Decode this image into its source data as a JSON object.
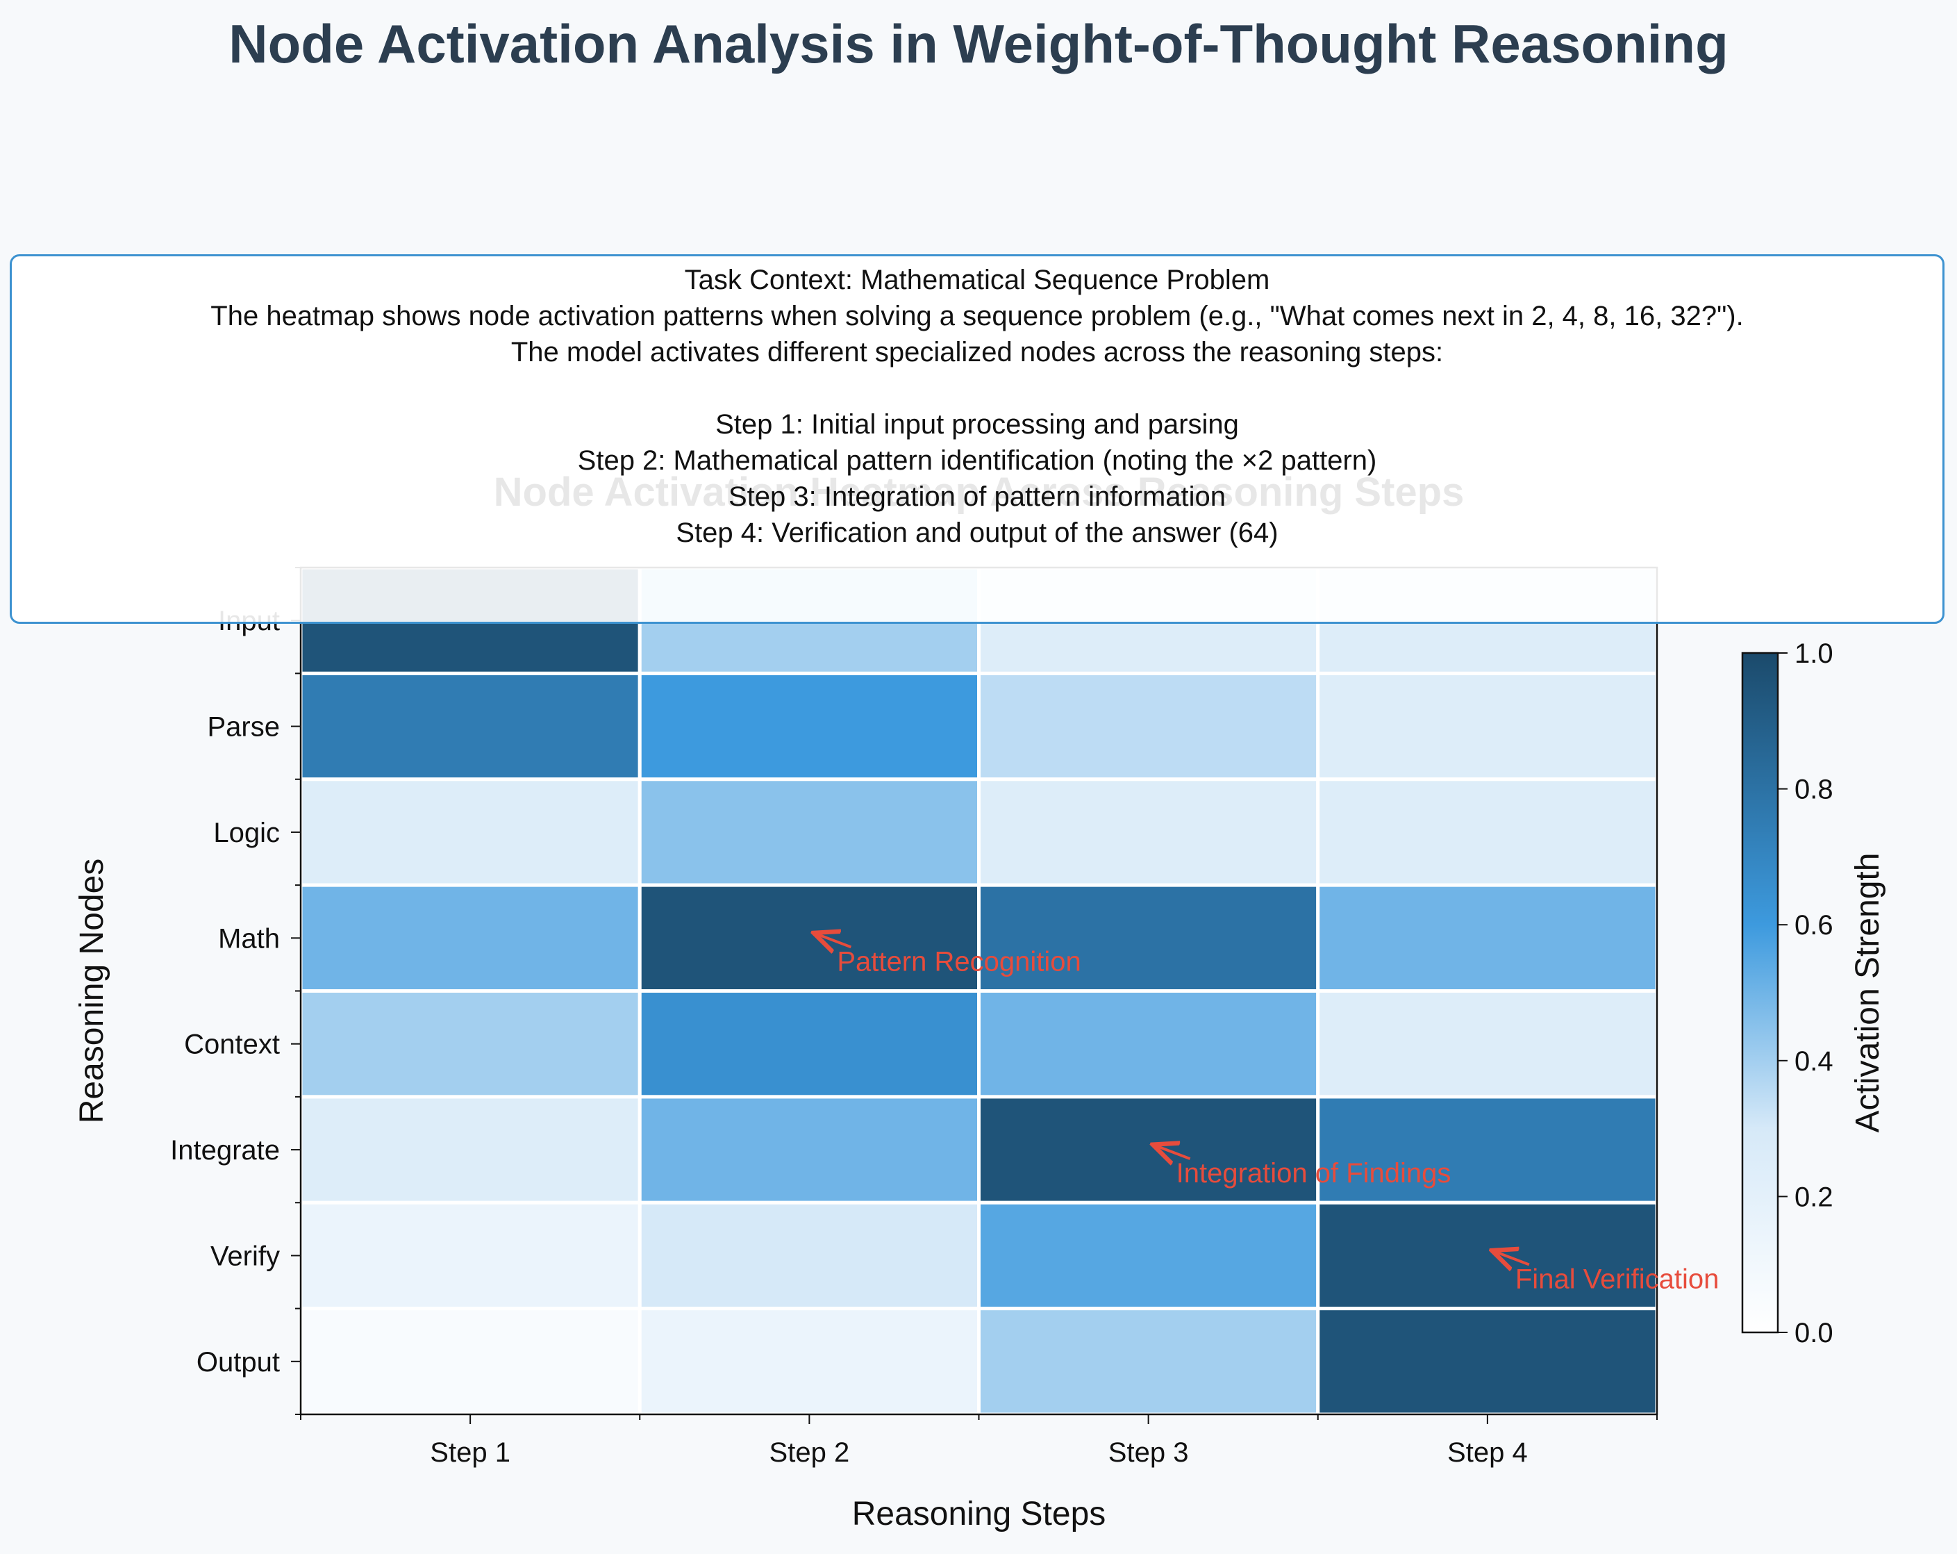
{
  "figure_title": "Node Activation Analysis in Weight-of-Thought Reasoning",
  "context_box": {
    "lines": [
      "Task Context: Mathematical Sequence Problem",
      "The heatmap shows node activation patterns when solving a sequence problem (e.g., \"What comes next in 2, 4, 8, 16, 32?\").",
      "The model activates different specialized nodes across the reasoning steps:",
      "",
      "Step 1: Initial input processing and parsing",
      "Step 2: Mathematical pattern identification (noting the ×2 pattern)",
      "Step 3: Integration of pattern information",
      "Step 4: Verification and output of the answer (64)"
    ]
  },
  "colors": {
    "title": "#2c3e50",
    "annotation": "#e74c3c",
    "box_border": "#3d92d0",
    "colormap": [
      "#ffffff",
      "#d6e9f8",
      "#3d9ade",
      "#1b4a6b"
    ]
  },
  "chart_data": {
    "type": "heatmap",
    "title": "Node Activation Heatmap Across Reasoning Steps",
    "xlabel": "Reasoning Steps",
    "ylabel": "Reasoning Nodes",
    "x_categories": [
      "Step 1",
      "Step 2",
      "Step 3",
      "Step 4"
    ],
    "y_categories": [
      "Input",
      "Parse",
      "Logic",
      "Math",
      "Context",
      "Integrate",
      "Verify",
      "Output"
    ],
    "values": [
      [
        0.95,
        0.4,
        0.25,
        0.25
      ],
      [
        0.75,
        0.6,
        0.35,
        0.25
      ],
      [
        0.25,
        0.45,
        0.25,
        0.25
      ],
      [
        0.5,
        0.95,
        0.8,
        0.5
      ],
      [
        0.4,
        0.65,
        0.5,
        0.25
      ],
      [
        0.25,
        0.5,
        0.95,
        0.75
      ],
      [
        0.15,
        0.3,
        0.55,
        0.95
      ],
      [
        0.05,
        0.15,
        0.4,
        0.95
      ]
    ],
    "colorbar": {
      "label": "Activation Strength",
      "range": [
        0.0,
        1.0
      ],
      "ticks": [
        "0.0",
        "0.2",
        "0.4",
        "0.6",
        "0.8",
        "1.0"
      ]
    },
    "annotations": [
      {
        "text": "Pattern Recognition",
        "step": "Step 2",
        "node": "Math"
      },
      {
        "text": "Integration of Findings",
        "step": "Step 3",
        "node": "Integrate"
      },
      {
        "text": "Final Verification",
        "step": "Step 4",
        "node": "Verify"
      }
    ],
    "grid": false
  }
}
